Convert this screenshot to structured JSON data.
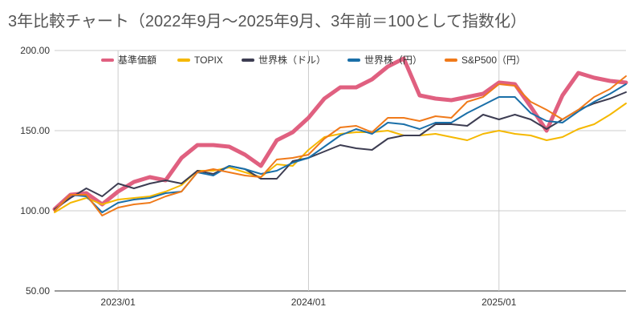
{
  "chart_data": {
    "type": "line",
    "title": "3年比較チャート（2022年9月〜2025年9月、3年前＝100として指数化）",
    "xlabel": "",
    "ylabel": "",
    "ylim": [
      50,
      200
    ],
    "yticks": [
      "50.00",
      "100.00",
      "150.00",
      "200.00"
    ],
    "xticks": [
      "2023/01",
      "2024/01",
      "2025/01"
    ],
    "grid": true,
    "legend_position": "top",
    "x": [
      "2022/09",
      "2022/10",
      "2022/11",
      "2022/12",
      "2023/01",
      "2023/02",
      "2023/03",
      "2023/04",
      "2023/05",
      "2023/06",
      "2023/07",
      "2023/08",
      "2023/09",
      "2023/10",
      "2023/11",
      "2023/12",
      "2024/01",
      "2024/02",
      "2024/03",
      "2024/04",
      "2024/05",
      "2024/06",
      "2024/07",
      "2024/08",
      "2024/09",
      "2024/10",
      "2024/11",
      "2024/12",
      "2025/01",
      "2025/02",
      "2025/03",
      "2025/04",
      "2025/05",
      "2025/06",
      "2025/07",
      "2025/08",
      "2025/09"
    ],
    "series": [
      {
        "name": "基準価額",
        "color": "#e06080",
        "width": 5,
        "values": [
          101,
          110,
          111,
          104,
          112,
          118,
          121,
          119,
          133,
          141,
          141,
          140,
          135,
          128,
          144,
          149,
          158,
          170,
          177,
          177,
          182,
          190,
          195,
          172,
          170,
          169,
          171,
          173,
          180,
          179,
          165,
          150,
          172,
          186,
          183,
          181,
          180
        ]
      },
      {
        "name": "TOPIX",
        "color": "#f5b800",
        "width": 2,
        "values": [
          99,
          105,
          108,
          104,
          107,
          108,
          109,
          112,
          116,
          125,
          125,
          127,
          124,
          121,
          129,
          128,
          138,
          146,
          148,
          149,
          149,
          150,
          147,
          147,
          148,
          146,
          144,
          148,
          150,
          148,
          147,
          144,
          146,
          151,
          154,
          160,
          167
        ]
      },
      {
        "name": "世界株（ドル）",
        "color": "#3d3d52",
        "width": 2,
        "values": [
          101,
          108,
          114,
          109,
          117,
          114,
          117,
          119,
          117,
          125,
          123,
          128,
          126,
          120,
          120,
          131,
          133,
          137,
          141,
          139,
          138,
          145,
          147,
          147,
          154,
          154,
          153,
          160,
          157,
          160,
          157,
          151,
          157,
          163,
          167,
          170,
          174
        ]
      },
      {
        "name": "世界株（円）",
        "color": "#1a6fa8",
        "width": 2,
        "values": [
          100,
          110,
          109,
          99,
          105,
          107,
          108,
          111,
          112,
          124,
          122,
          128,
          126,
          123,
          125,
          130,
          133,
          140,
          147,
          151,
          148,
          155,
          154,
          151,
          155,
          155,
          161,
          166,
          171,
          171,
          161,
          156,
          155,
          162,
          168,
          173,
          179
        ]
      },
      {
        "name": "S&P500（円）",
        "color": "#f07a1a",
        "width": 2,
        "values": [
          100,
          110,
          110,
          97,
          102,
          104,
          105,
          109,
          112,
          124,
          126,
          124,
          122,
          121,
          132,
          133,
          135,
          145,
          152,
          153,
          149,
          158,
          158,
          156,
          159,
          158,
          168,
          171,
          179,
          178,
          168,
          163,
          157,
          163,
          171,
          176,
          184
        ]
      }
    ]
  }
}
